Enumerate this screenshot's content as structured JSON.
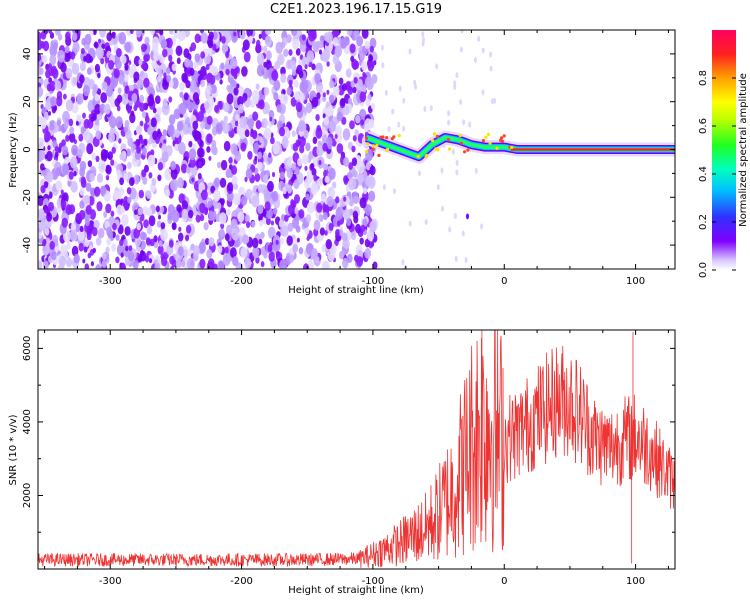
{
  "title": "C2E1.2023.196.17.15.G19",
  "colors": {
    "snr_line": "#ee3333",
    "spectrum_noise": "#7f00ff",
    "axis": "#000000"
  },
  "chart_data": [
    {
      "type": "heatmap",
      "xlabel": "Height of straight line (km)",
      "ylabel": "Frequency (Hz)",
      "xlim": [
        -355,
        130
      ],
      "ylim": [
        -50,
        50
      ],
      "x_ticks": [
        -300,
        -200,
        -100,
        0,
        100
      ],
      "x_tick_labels": [
        "-300",
        "-200",
        "-100",
        "0",
        "100"
      ],
      "y_ticks": [
        -40,
        -20,
        0,
        20,
        40
      ],
      "y_tick_labels": [
        "-40",
        "-20",
        "0",
        "20",
        "40"
      ],
      "colorbar": {
        "label": "Normalized spectral amplitude",
        "range": [
          0,
          1
        ],
        "ticks": [
          0.0,
          0.2,
          0.4,
          0.6,
          0.8
        ],
        "tick_labels": [
          "0.0",
          "0.2",
          "0.4",
          "0.6",
          "0.8"
        ],
        "colormap": "rainbow"
      },
      "features": {
        "noise_region_x": [
          -355,
          -98
        ],
        "signal_track": [
          {
            "x": -105,
            "y": 5
          },
          {
            "x": -95,
            "y": 3
          },
          {
            "x": -85,
            "y": 1
          },
          {
            "x": -75,
            "y": -1
          },
          {
            "x": -65,
            "y": -3
          },
          {
            "x": -55,
            "y": 2
          },
          {
            "x": -45,
            "y": 5
          },
          {
            "x": -35,
            "y": 4
          },
          {
            "x": -25,
            "y": 2
          },
          {
            "x": -15,
            "y": 1
          },
          {
            "x": 0,
            "y": 1
          },
          {
            "x": 10,
            "y": 0
          },
          {
            "x": 130,
            "y": 0
          }
        ]
      }
    },
    {
      "type": "line",
      "xlabel": "Height of straight line (km)",
      "ylabel": "SNR (10 * v/v)",
      "xlim": [
        -355,
        130
      ],
      "ylim": [
        0,
        6500
      ],
      "x_ticks": [
        -300,
        -200,
        -100,
        0,
        100
      ],
      "x_tick_labels": [
        "-300",
        "-200",
        "-100",
        "0",
        "100"
      ],
      "y_ticks": [
        2000,
        4000,
        6000
      ],
      "y_tick_labels": [
        "2000",
        "4000",
        "6000"
      ],
      "series": [
        {
          "x": [
            -355,
            -300,
            -250,
            -200,
            -150,
            -110,
            -100,
            -90,
            -80,
            -70,
            -60,
            -50,
            -40,
            -30,
            -25,
            -20,
            -15,
            -10,
            -5,
            0,
            10,
            20,
            30,
            40,
            50,
            60,
            70,
            80,
            90,
            100,
            110,
            120,
            130
          ],
          "values": [
            250,
            250,
            250,
            250,
            250,
            280,
            400,
            550,
            700,
            900,
            1100,
            1500,
            2100,
            2900,
            3400,
            3800,
            4000,
            3900,
            3600,
            3500,
            3700,
            4000,
            4300,
            4600,
            4600,
            4100,
            3500,
            3300,
            3500,
            3600,
            3300,
            2800,
            2300
          ]
        }
      ],
      "spikes": [
        {
          "x": -17,
          "y": 6500
        },
        {
          "x": 98,
          "y": 6450
        },
        {
          "x": 97,
          "y": 150
        }
      ]
    }
  ]
}
